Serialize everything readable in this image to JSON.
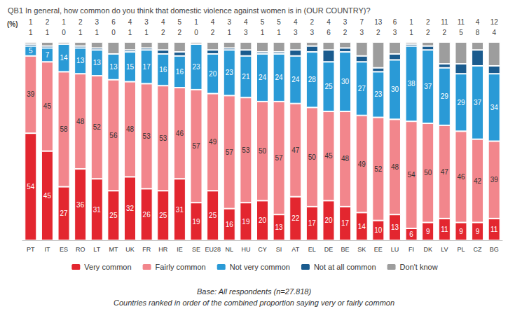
{
  "chart_data": {
    "type": "bar",
    "title": "QB1 In general, how common do you think that domestic violence against women is in (OUR COUNTRY)?",
    "subtitle": "(%)",
    "annotations": [
      "Base: All respondents (n=27.818)",
      "Countries ranked in order of the combined proportion saying very or fairly common"
    ],
    "categories": [
      "PT",
      "IT",
      "ES",
      "RO",
      "LT",
      "MT",
      "UK",
      "FR",
      "HR",
      "IE",
      "SE",
      "EU28",
      "NL",
      "HU",
      "CY",
      "SI",
      "AT",
      "EL",
      "DE",
      "BE",
      "SK",
      "EE",
      "LU",
      "FI",
      "DK",
      "LV",
      "PL",
      "CZ",
      "BG"
    ],
    "series": [
      {
        "name": "Very common",
        "color": "#e3262f",
        "values": [
          54,
          45,
          27,
          36,
          31,
          25,
          32,
          26,
          25,
          31,
          19,
          25,
          16,
          19,
          20,
          13,
          22,
          17,
          20,
          17,
          14,
          10,
          13,
          6,
          9,
          11,
          9,
          9,
          11
        ]
      },
      {
        "name": "Fairly common",
        "color": "#f2868c",
        "values": [
          39,
          45,
          58,
          48,
          52,
          56,
          48,
          53,
          53,
          46,
          57,
          49,
          57,
          53,
          50,
          57,
          47,
          50,
          45,
          48,
          49,
          52,
          48,
          54,
          50,
          47,
          46,
          42,
          39
        ]
      },
      {
        "name": "Not very common",
        "color": "#2a9ad6",
        "values": [
          5,
          7,
          14,
          13,
          13,
          13,
          15,
          17,
          16,
          16,
          23,
          20,
          23,
          21,
          24,
          24,
          24,
          28,
          25,
          30,
          27,
          23,
          30,
          38,
          37,
          29,
          29,
          37,
          34
        ]
      },
      {
        "name": "Not at all common",
        "color": "#1a5b8e",
        "values": [
          1,
          1,
          0,
          1,
          1,
          0,
          1,
          1,
          2,
          2,
          0,
          2,
          1,
          3,
          1,
          1,
          3,
          3,
          6,
          2,
          3,
          2,
          3,
          1,
          2,
          2,
          5,
          8,
          4
        ]
      },
      {
        "name": "Don't know",
        "color": "#9d9d9d",
        "values": [
          1,
          2,
          1,
          2,
          3,
          6,
          4,
          3,
          4,
          5,
          1,
          4,
          3,
          4,
          5,
          5,
          4,
          2,
          4,
          3,
          7,
          13,
          6,
          1,
          2,
          11,
          11,
          4,
          12
        ]
      }
    ],
    "ylim": [
      0,
      100
    ],
    "stacked": true,
    "data_labels": true,
    "tick_labels": "x",
    "grid": false,
    "legend": "bottom"
  }
}
